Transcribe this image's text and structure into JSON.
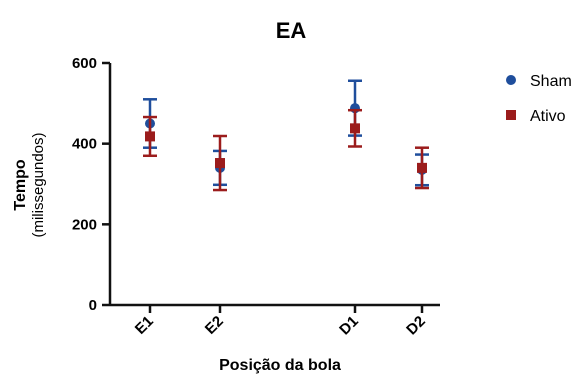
{
  "chart_data": {
    "type": "scatter",
    "title": "EA",
    "xlabel": "Posição da bola",
    "ylabel": "Tempo",
    "ylabel_sub": "(milissegundos)",
    "categories": [
      "E1",
      "E2",
      "D1",
      "D2"
    ],
    "ylim": [
      0,
      600
    ],
    "yticks": [
      0,
      200,
      400,
      600
    ],
    "legend_position": "top-right",
    "series": [
      {
        "name": "Sham",
        "marker": "circle",
        "color": "#1f4e9c",
        "values": [
          450,
          340,
          488,
          335
        ],
        "error": [
          60,
          42,
          68,
          38
        ]
      },
      {
        "name": "Ativo",
        "marker": "square",
        "color": "#9b1c1c",
        "values": [
          418,
          352,
          438,
          340
        ],
        "error": [
          48,
          67,
          45,
          50
        ]
      }
    ]
  }
}
